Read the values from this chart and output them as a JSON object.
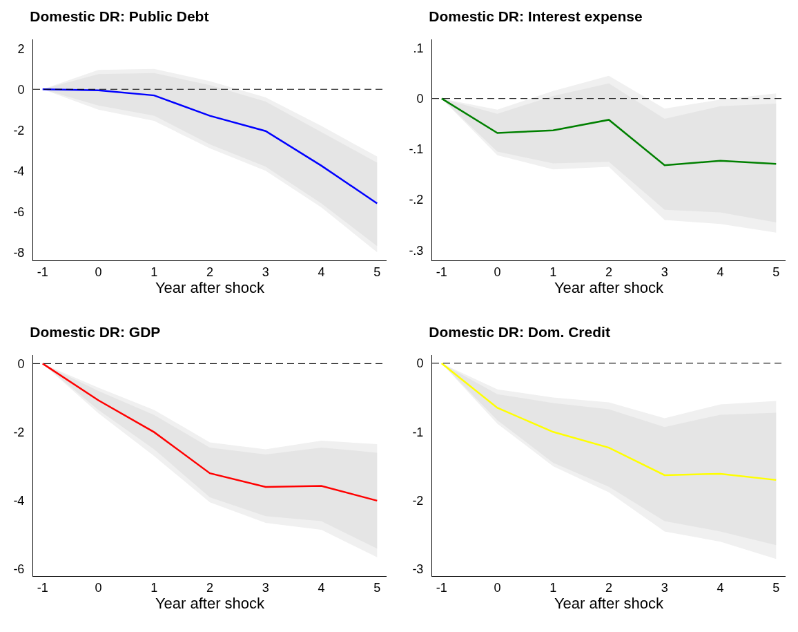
{
  "chart_data": [
    {
      "type": "line",
      "title": "Domestic DR: Public Debt",
      "xlabel": "Year after shock",
      "x": [
        -1,
        0,
        1,
        2,
        3,
        4,
        5
      ],
      "xlim": [
        -1.17,
        5.17
      ],
      "xticks": [
        -1,
        0,
        1,
        2,
        3,
        4,
        5
      ],
      "ylim": [
        -8.4,
        2.45
      ],
      "yticks": [
        -8,
        -6,
        -4,
        -2,
        0,
        2
      ],
      "grid": false,
      "marker": "none",
      "line_style": "solid",
      "ref_lines": [
        {
          "axis": "y",
          "value": 0,
          "line_style": "dashed",
          "color": "#000000"
        }
      ],
      "series": [
        {
          "color": "#f0f0f0",
          "values": [
            null,
            null,
            null,
            null,
            null,
            null,
            null
          ],
          "lower": [
            0,
            -1.0,
            -1.55,
            -2.9,
            -4.0,
            -5.8,
            -8.0
          ],
          "upper": [
            0,
            0.95,
            1.0,
            0.4,
            -0.4,
            -1.8,
            -3.3
          ]
        },
        {
          "color": "#e5e5e5",
          "values": [
            null,
            null,
            null,
            null,
            null,
            null,
            null
          ],
          "lower": [
            0,
            -0.8,
            -1.3,
            -2.7,
            -3.8,
            -5.6,
            -7.7
          ],
          "upper": [
            0,
            0.75,
            0.8,
            0.2,
            -0.6,
            -2.1,
            -3.6
          ]
        },
        {
          "color": "#0000ff",
          "values": [
            0,
            -0.05,
            -0.3,
            -1.3,
            -2.05,
            -3.75,
            -5.6
          ]
        }
      ]
    },
    {
      "type": "line",
      "title": "Domestic DR: Interest expense",
      "xlabel": "Year after shock",
      "x": [
        -1,
        0,
        1,
        2,
        3,
        4,
        5
      ],
      "xlim": [
        -1.17,
        5.17
      ],
      "xticks": [
        -1,
        0,
        1,
        2,
        3,
        4,
        5
      ],
      "ylim": [
        -0.32,
        0.117
      ],
      "yticks": [
        {
          "value": -0.3,
          "label": "-.3"
        },
        {
          "value": -0.2,
          "label": "-.2"
        },
        {
          "value": -0.1,
          "label": "-.1"
        },
        0,
        {
          "value": 0.1,
          "label": ".1"
        }
      ],
      "grid": false,
      "marker": "none",
      "line_style": "solid",
      "ref_lines": [
        {
          "axis": "y",
          "value": 0,
          "line_style": "dashed",
          "color": "#000000"
        }
      ],
      "series": [
        {
          "color": "#f0f0f0",
          "values": [
            null,
            null,
            null,
            null,
            null,
            null,
            null
          ],
          "lower": [
            0,
            -0.112,
            -0.14,
            -0.135,
            -0.24,
            -0.248,
            -0.265
          ],
          "upper": [
            0,
            -0.022,
            0.015,
            0.045,
            -0.02,
            -0.002,
            0.01
          ]
        },
        {
          "color": "#e5e5e5",
          "values": [
            null,
            null,
            null,
            null,
            null,
            null,
            null
          ],
          "lower": [
            0,
            -0.105,
            -0.128,
            -0.125,
            -0.22,
            -0.225,
            -0.245
          ],
          "upper": [
            0,
            -0.03,
            0.005,
            0.03,
            -0.04,
            -0.015,
            -0.01
          ]
        },
        {
          "color": "#008000",
          "values": [
            0,
            -0.068,
            -0.063,
            -0.042,
            -0.132,
            -0.123,
            -0.129
          ]
        }
      ]
    },
    {
      "type": "line",
      "title": "Domestic DR: GDP",
      "xlabel": "Year after shock",
      "x": [
        -1,
        0,
        1,
        2,
        3,
        4,
        5
      ],
      "xlim": [
        -1.17,
        5.17
      ],
      "xticks": [
        -1,
        0,
        1,
        2,
        3,
        4,
        5
      ],
      "ylim": [
        -6.2,
        0.25
      ],
      "yticks": [
        -6,
        -4,
        -2,
        0
      ],
      "grid": false,
      "marker": "none",
      "line_style": "solid",
      "ref_lines": [
        {
          "axis": "y",
          "value": 0,
          "line_style": "dashed",
          "color": "#000000"
        }
      ],
      "series": [
        {
          "color": "#f0f0f0",
          "values": [
            null,
            null,
            null,
            null,
            null,
            null,
            null
          ],
          "lower": [
            0,
            -1.45,
            -2.7,
            -4.05,
            -4.65,
            -4.85,
            -5.65
          ],
          "upper": [
            0,
            -0.7,
            -1.35,
            -2.3,
            -2.5,
            -2.25,
            -2.35
          ]
        },
        {
          "color": "#e5e5e5",
          "values": [
            null,
            null,
            null,
            null,
            null,
            null,
            null
          ],
          "lower": [
            0,
            -1.35,
            -2.5,
            -3.9,
            -4.45,
            -4.6,
            -5.4
          ],
          "upper": [
            0,
            -0.8,
            -1.5,
            -2.45,
            -2.65,
            -2.45,
            -2.6
          ]
        },
        {
          "color": "#ff0000",
          "values": [
            0,
            -1.07,
            -2.0,
            -3.2,
            -3.6,
            -3.57,
            -4.0
          ]
        }
      ]
    },
    {
      "type": "line",
      "title": "Domestic DR: Dom. Credit",
      "xlabel": "Year after shock",
      "x": [
        -1,
        0,
        1,
        2,
        3,
        4,
        5
      ],
      "xlim": [
        -1.17,
        5.17
      ],
      "xticks": [
        -1,
        0,
        1,
        2,
        3,
        4,
        5
      ],
      "ylim": [
        -3.1,
        0.12
      ],
      "yticks": [
        -3,
        -2,
        -1,
        0
      ],
      "grid": false,
      "marker": "none",
      "line_style": "solid",
      "ref_lines": [
        {
          "axis": "y",
          "value": 0,
          "line_style": "dashed",
          "color": "#000000"
        }
      ],
      "series": [
        {
          "color": "#f0f0f0",
          "values": [
            null,
            null,
            null,
            null,
            null,
            null,
            null
          ],
          "lower": [
            0,
            -0.88,
            -1.5,
            -1.88,
            -2.45,
            -2.6,
            -2.85
          ],
          "upper": [
            0,
            -0.38,
            -0.5,
            -0.57,
            -0.8,
            -0.6,
            -0.55
          ]
        },
        {
          "color": "#e5e5e5",
          "values": [
            null,
            null,
            null,
            null,
            null,
            null,
            null
          ],
          "lower": [
            0,
            -0.83,
            -1.45,
            -1.8,
            -2.3,
            -2.45,
            -2.65
          ],
          "upper": [
            0,
            -0.45,
            -0.58,
            -0.67,
            -0.93,
            -0.75,
            -0.72
          ]
        },
        {
          "color": "#ffff00",
          "values": [
            0,
            -0.65,
            -1.0,
            -1.23,
            -1.63,
            -1.61,
            -1.7
          ]
        }
      ]
    }
  ]
}
